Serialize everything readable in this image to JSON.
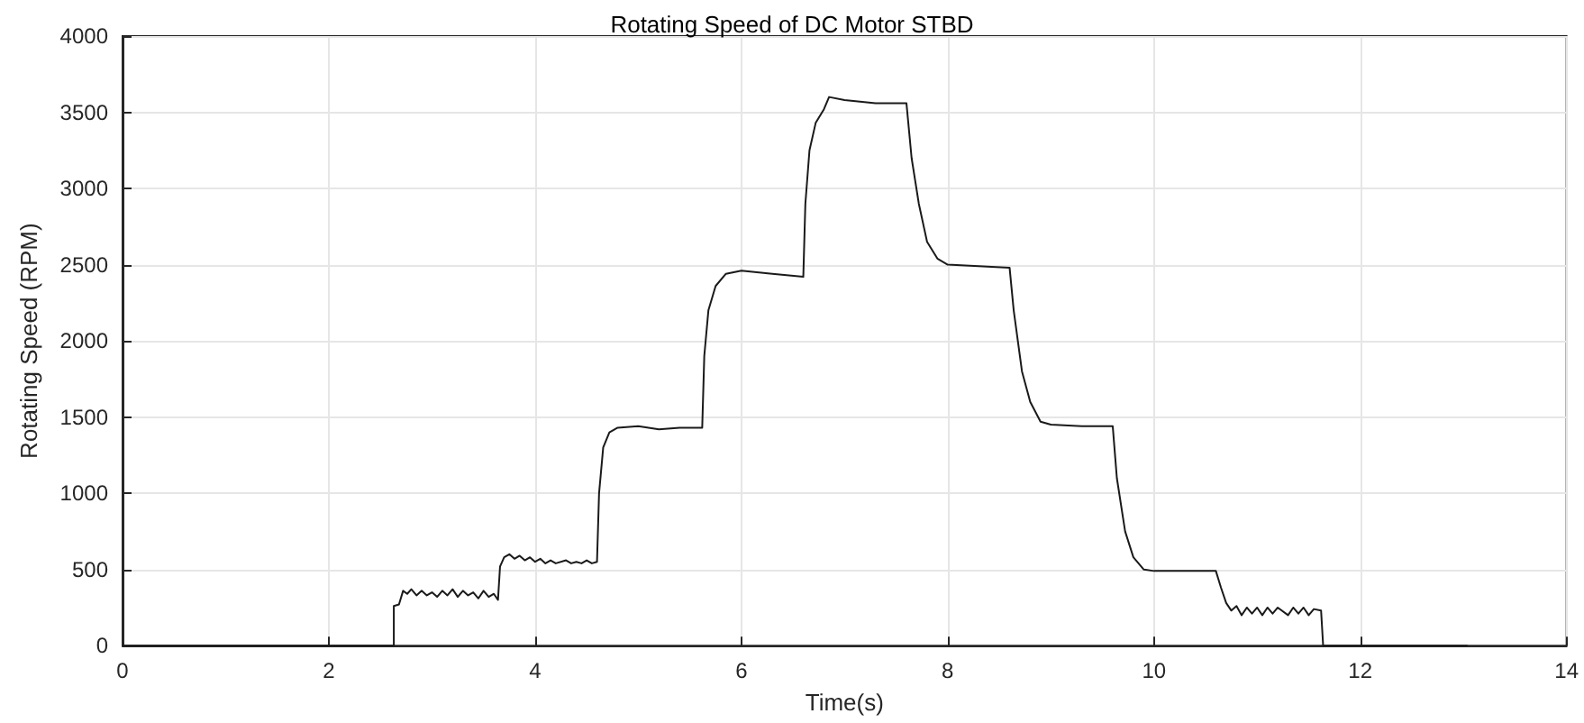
{
  "chart_data": {
    "type": "line",
    "title": "Rotating Speed of DC Motor STBD",
    "xlabel": "Time(s)",
    "ylabel": "Rotating Speed (RPM)",
    "x": [
      0,
      2.63,
      2.63,
      2.68,
      2.72,
      2.76,
      2.8,
      2.85,
      2.9,
      2.95,
      3.0,
      3.05,
      3.1,
      3.15,
      3.2,
      3.25,
      3.3,
      3.35,
      3.4,
      3.45,
      3.5,
      3.55,
      3.6,
      3.64,
      3.66,
      3.7,
      3.75,
      3.8,
      3.85,
      3.9,
      3.95,
      4.0,
      4.05,
      4.1,
      4.15,
      4.2,
      4.3,
      4.35,
      4.4,
      4.45,
      4.5,
      4.55,
      4.6,
      4.62,
      4.66,
      4.72,
      4.8,
      5.0,
      5.2,
      5.4,
      5.62,
      5.64,
      5.68,
      5.75,
      5.85,
      6.0,
      6.3,
      6.6,
      6.62,
      6.66,
      6.72,
      6.8,
      6.85,
      7.0,
      7.3,
      7.6,
      7.65,
      7.72,
      7.8,
      7.9,
      8.0,
      8.3,
      8.6,
      8.64,
      8.72,
      8.8,
      8.9,
      9.0,
      9.3,
      9.6,
      9.64,
      9.72,
      9.8,
      9.9,
      10.0,
      10.3,
      10.6,
      10.65,
      10.7,
      10.75,
      10.8,
      10.85,
      10.9,
      10.95,
      11.0,
      11.05,
      11.1,
      11.15,
      11.2,
      11.3,
      11.35,
      11.4,
      11.45,
      11.5,
      11.55,
      11.62,
      11.64,
      13.04
    ],
    "series": [
      {
        "color": "#1a1a1a",
        "values": [
          0,
          0,
          260,
          270,
          360,
          340,
          370,
          330,
          360,
          330,
          350,
          320,
          360,
          330,
          370,
          320,
          360,
          330,
          350,
          310,
          360,
          320,
          340,
          300,
          520,
          580,
          600,
          570,
          590,
          560,
          580,
          550,
          570,
          540,
          560,
          540,
          560,
          540,
          550,
          540,
          560,
          540,
          550,
          1000,
          1300,
          1400,
          1430,
          1440,
          1420,
          1430,
          1430,
          1900,
          2200,
          2360,
          2440,
          2460,
          2440,
          2420,
          2900,
          3250,
          3430,
          3520,
          3600,
          3580,
          3560,
          3560,
          3200,
          2900,
          2650,
          2540,
          2500,
          2490,
          2480,
          2200,
          1800,
          1600,
          1470,
          1450,
          1440,
          1440,
          1100,
          750,
          580,
          500,
          490,
          490,
          490,
          380,
          280,
          230,
          260,
          200,
          250,
          210,
          250,
          200,
          250,
          210,
          250,
          200,
          250,
          210,
          250,
          200,
          240,
          230,
          0,
          0
        ]
      }
    ],
    "xlim": [
      0,
      14
    ],
    "xticks": [
      0,
      2,
      4,
      6,
      8,
      10,
      12,
      14
    ],
    "ylim": [
      0,
      4000
    ],
    "yticks": [
      0,
      500,
      1000,
      1500,
      2000,
      2500,
      3000,
      3500,
      4000
    ],
    "grid": true,
    "marker": "none",
    "line_style": "solid"
  }
}
